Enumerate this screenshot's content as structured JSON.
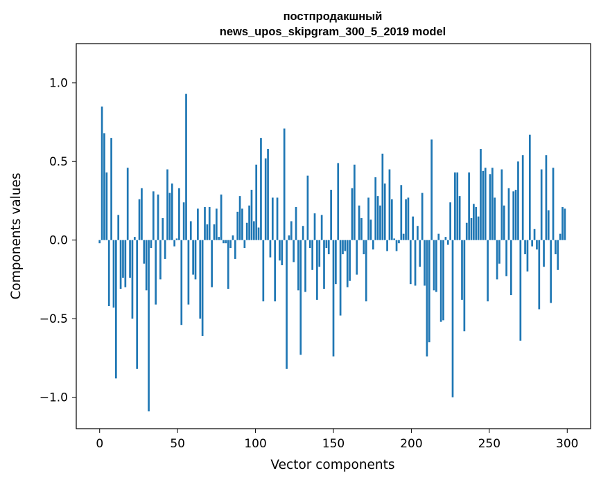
{
  "chart_data": {
    "type": "bar",
    "title": "постпродакшный\nnews_upos_skipgram_300_5_2019 model",
    "title_lines": [
      "постпродакшный",
      "news_upos_skipgram_300_5_2019 model"
    ],
    "xlabel": "Vector components",
    "ylabel": "Components values",
    "bar_color": "#1f77b4",
    "xlim": [
      -15,
      315
    ],
    "ylim": [
      -1.2,
      1.25
    ],
    "xticks": [
      0,
      50,
      100,
      150,
      200,
      250,
      300
    ],
    "xtick_labels": [
      "0",
      "50",
      "100",
      "150",
      "200",
      "250",
      "300"
    ],
    "yticks": [
      -1.0,
      -0.5,
      0.0,
      0.5,
      1.0
    ],
    "ytick_labels": [
      "−1.0",
      "−0.5",
      "0.0",
      "0.5",
      "1.0"
    ],
    "grid": false,
    "values": [
      -0.02,
      0.85,
      0.68,
      0.43,
      -0.42,
      0.65,
      -0.43,
      -0.88,
      0.16,
      -0.31,
      -0.24,
      -0.3,
      0.46,
      -0.24,
      -0.5,
      0.02,
      -0.82,
      0.26,
      0.33,
      -0.15,
      -0.32,
      -1.09,
      -0.05,
      0.31,
      -0.41,
      0.29,
      -0.25,
      0.14,
      -0.12,
      0.45,
      0.3,
      0.36,
      -0.04,
      0.01,
      0.33,
      -0.54,
      0.24,
      0.93,
      -0.41,
      0.12,
      -0.22,
      -0.25,
      0.2,
      -0.5,
      -0.61,
      0.21,
      0.1,
      0.21,
      -0.3,
      0.1,
      0.2,
      0.02,
      0.29,
      -0.02,
      -0.02,
      -0.31,
      -0.05,
      0.03,
      -0.12,
      0.18,
      0.28,
      0.2,
      -0.05,
      0.11,
      0.22,
      0.32,
      0.12,
      0.48,
      0.08,
      0.65,
      -0.39,
      0.52,
      0.58,
      -0.11,
      0.27,
      -0.39,
      0.27,
      -0.13,
      -0.16,
      0.71,
      -0.82,
      0.03,
      0.12,
      -0.14,
      0.21,
      -0.32,
      -0.73,
      0.09,
      -0.33,
      0.41,
      -0.05,
      -0.19,
      0.17,
      -0.38,
      -0.17,
      0.16,
      -0.31,
      -0.05,
      -0.09,
      0.32,
      -0.74,
      -0.28,
      0.49,
      -0.48,
      -0.09,
      -0.07,
      -0.3,
      -0.26,
      0.33,
      0.48,
      -0.22,
      0.22,
      0.14,
      -0.09,
      -0.39,
      0.27,
      0.13,
      -0.06,
      0.4,
      0.28,
      0.22,
      0.55,
      0.36,
      -0.07,
      0.45,
      0.26,
      0.01,
      -0.07,
      -0.02,
      0.35,
      0.04,
      0.26,
      0.27,
      -0.28,
      0.15,
      -0.29,
      0.09,
      -0.17,
      0.3,
      -0.29,
      -0.74,
      -0.65,
      0.64,
      -0.32,
      -0.33,
      0.04,
      -0.52,
      -0.51,
      0.02,
      -0.03,
      0.24,
      -1.0,
      0.43,
      0.43,
      0.28,
      -0.38,
      -0.58,
      0.11,
      0.43,
      0.14,
      0.23,
      0.21,
      0.15,
      0.58,
      0.44,
      0.46,
      -0.39,
      0.42,
      0.46,
      0.27,
      -0.25,
      -0.15,
      0.45,
      0.22,
      -0.23,
      0.33,
      -0.35,
      0.31,
      0.32,
      0.5,
      -0.64,
      0.54,
      -0.09,
      -0.2,
      0.67,
      -0.04,
      0.07,
      -0.06,
      -0.44,
      0.45,
      -0.17,
      0.54,
      0.19,
      -0.4,
      0.46,
      -0.09,
      -0.19,
      0.04,
      0.21,
      0.2
    ]
  }
}
